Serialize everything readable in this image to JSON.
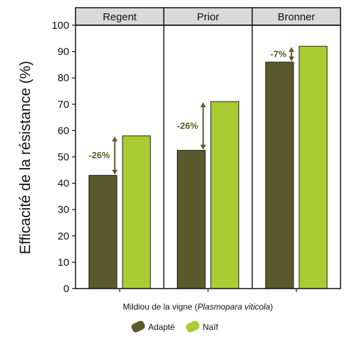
{
  "chart_data": {
    "type": "bar",
    "ylabel": "Efficacité de la résistance (%)",
    "xlabel_plain": "Mildiou de la vigne (",
    "xlabel_italic": "Plasmopara viticola",
    "xlabel_end": ")",
    "ylim": [
      0,
      100
    ],
    "yticks": [
      0,
      10,
      20,
      30,
      40,
      50,
      60,
      70,
      80,
      90,
      100
    ],
    "categories": [
      "Regent",
      "Prior",
      "Bronner"
    ],
    "series": [
      {
        "name": "Adapté",
        "values": [
          43,
          52.5,
          86
        ]
      },
      {
        "name": "Naïf",
        "values": [
          58,
          71,
          92
        ]
      }
    ],
    "annotations": [
      "-26%",
      "-26%",
      "-7%"
    ],
    "colors": {
      "adapte": "#5a5a2c",
      "naif": "#a8cc32",
      "header_bg": "#d9d9d9",
      "annotation": "#5a5a2c"
    },
    "grid": false,
    "legend_position": "bottom"
  }
}
